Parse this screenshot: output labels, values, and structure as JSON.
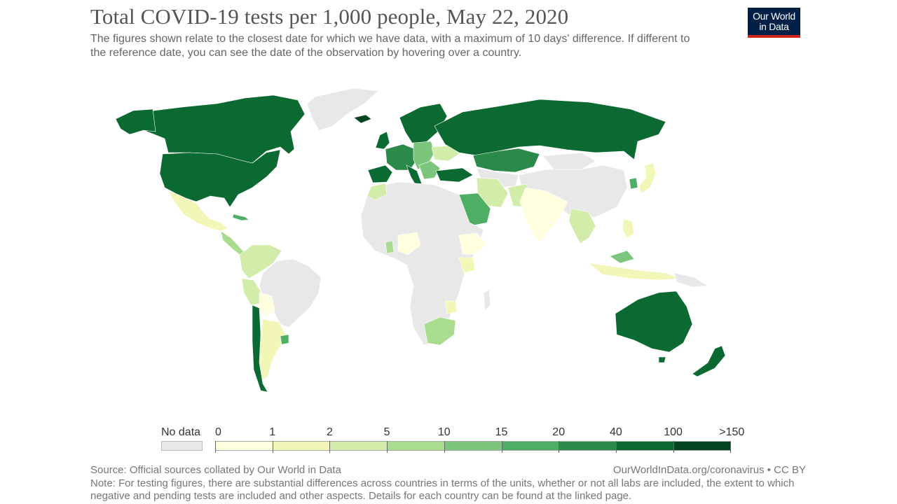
{
  "header": {
    "title": "Total COVID-19 tests per 1,000 people, May 22, 2020",
    "subtitle": "The figures shown relate to the closest date for which we have data, with a maximum of 10 days' difference. If different to the reference date, you can see the date of the observation by hovering over a country."
  },
  "logo": {
    "line1": "Our World",
    "line2": "in Data",
    "bg_color": "#002147",
    "accent_color": "#ce261e"
  },
  "legend": {
    "no_data_label": "No data",
    "no_data_color": "#e8e8e8",
    "tick_labels": [
      "0",
      "1",
      "2",
      "5",
      "10",
      "15",
      "20",
      "40",
      "100",
      ">150"
    ],
    "bin_colors": [
      "#ffffe0",
      "#f2f7b8",
      "#d2ecaa",
      "#a9dc8e",
      "#7cc57c",
      "#4eae64",
      "#2b8a4a",
      "#0b6a31",
      "#02441e"
    ]
  },
  "map_colors": {
    "background": "#ffffff",
    "land_no_data": "#e8e8e8",
    "border": "#ffffff"
  },
  "footer": {
    "source": "Source: Official sources collated by Our World in Data",
    "credit": "OurWorldInData.org/coronavirus • CC BY",
    "note": "Note: For testing figures, there are substantial differences across countries in terms of the units, whether or not all labs are included, the extent to which negative and pending tests are included and other aspects. Details for each country can be found at the linked page."
  }
}
